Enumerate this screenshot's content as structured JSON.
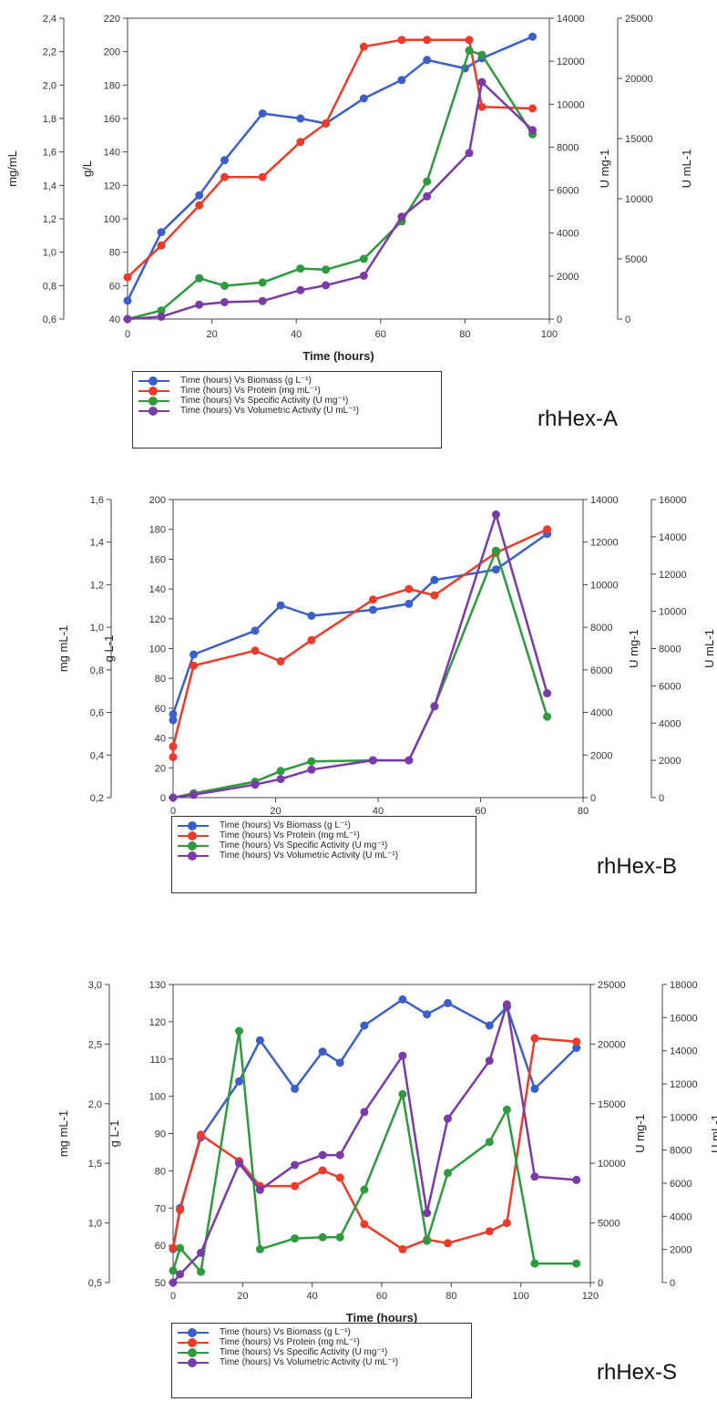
{
  "colors": {
    "biomass": "#3a5fc8",
    "protein": "#ee3a2a",
    "specific": "#2e9a3e",
    "volumetric": "#7a3aa8"
  },
  "chart_data": [
    {
      "type": "line",
      "name": "rhHex-A",
      "xlabel": "Time (hours)",
      "xlim": [
        0,
        100
      ],
      "xticks": [
        0,
        20,
        40,
        60,
        80,
        100
      ],
      "axes": [
        {
          "id": "mg",
          "label": "mg/mL",
          "min": 0.6,
          "max": 2.4,
          "ticks": [
            "0,6",
            "0,8",
            "1,0",
            "1,2",
            "1,4",
            "1,6",
            "1,8",
            "2,0",
            "2,2",
            "2,4"
          ]
        },
        {
          "id": "gl",
          "label": "g/L",
          "min": 40,
          "max": 220,
          "ticks": [
            "40",
            "60",
            "80",
            "100",
            "120",
            "140",
            "160",
            "180",
            "200",
            "220"
          ]
        },
        {
          "id": "umg",
          "label": "U mg-1",
          "min": 0,
          "max": 14000,
          "ticks": [
            "0",
            "2000",
            "4000",
            "6000",
            "8000",
            "10000",
            "12000",
            "14000"
          ]
        },
        {
          "id": "uml",
          "label": "U mL-1",
          "min": 0,
          "max": 25000,
          "ticks": [
            "0",
            "5000",
            "10000",
            "15000",
            "20000",
            "25000"
          ]
        }
      ],
      "series": [
        {
          "name": "Time (hours) Vs Biomass (g L⁻¹)",
          "axis": "gl",
          "color": "biomass",
          "x": [
            0,
            8,
            17,
            23,
            32,
            41,
            47,
            56,
            65,
            71,
            80,
            84,
            96
          ],
          "y": [
            51,
            92,
            114,
            135,
            163,
            160,
            157,
            172,
            183,
            195,
            190,
            196,
            209
          ]
        },
        {
          "name": "Time (hours) Vs Protein (mg mL⁻¹)",
          "axis": "mg",
          "color": "protein",
          "x": [
            0,
            8,
            17,
            23,
            32,
            41,
            47,
            56,
            65,
            71,
            81,
            84,
            96
          ],
          "y": [
            0.85,
            1.04,
            1.28,
            1.45,
            1.45,
            1.66,
            1.77,
            2.23,
            2.27,
            2.27,
            2.27,
            1.87,
            1.86
          ]
        },
        {
          "name": "Time (hours) Vs Specific Activity (U mg⁻¹)",
          "axis": "umg",
          "color": "specific",
          "x": [
            0,
            8,
            17,
            23,
            32,
            41,
            47,
            56,
            65,
            71,
            81,
            84,
            96
          ],
          "y": [
            0,
            400,
            1900,
            1550,
            1700,
            2350,
            2300,
            2800,
            4550,
            6400,
            12500,
            12300,
            8600
          ]
        },
        {
          "name": "Time (hours) Vs Volumetric Activity  (U mL⁻¹)",
          "axis": "uml",
          "color": "volumetric",
          "x": [
            0,
            8,
            17,
            23,
            32,
            41,
            47,
            56,
            65,
            71,
            81,
            84,
            96
          ],
          "y": [
            0,
            200,
            1200,
            1400,
            1500,
            2400,
            2800,
            3600,
            8500,
            10200,
            13800,
            19700,
            15700
          ]
        }
      ]
    },
    {
      "type": "line",
      "name": "rhHex-B",
      "xlabel": "Time (hours)",
      "xlim": [
        0,
        80
      ],
      "xticks": [
        0,
        20,
        40,
        60,
        80
      ],
      "axes": [
        {
          "id": "mg",
          "label": "mg mL-1",
          "min": 0.2,
          "max": 1.6,
          "ticks": [
            "0,2",
            "0,4",
            "0,6",
            "0,8",
            "1,0",
            "1,2",
            "1,4",
            "1,6"
          ]
        },
        {
          "id": "gl",
          "label": "g L-1",
          "min": 0,
          "max": 200,
          "ticks": [
            "0",
            "20",
            "40",
            "60",
            "80",
            "100",
            "120",
            "140",
            "160",
            "180",
            "200"
          ]
        },
        {
          "id": "umg",
          "label": "U mg-1",
          "min": 0,
          "max": 14000,
          "ticks": [
            "0",
            "2000",
            "4000",
            "6000",
            "8000",
            "10000",
            "12000",
            "14000"
          ]
        },
        {
          "id": "uml",
          "label": "U mL-1",
          "min": 0,
          "max": 16000,
          "ticks": [
            "0",
            "2000",
            "4000",
            "6000",
            "8000",
            "10000",
            "12000",
            "14000",
            "16000"
          ]
        }
      ],
      "series": [
        {
          "name": "Time (hours) Vs Biomass (g L⁻¹)",
          "axis": "gl",
          "color": "biomass",
          "x": [
            0,
            0,
            4,
            16,
            21,
            27,
            39,
            46,
            51,
            63,
            73
          ],
          "y": [
            52,
            56,
            96,
            112,
            129,
            122,
            126,
            130,
            146,
            153,
            177
          ]
        },
        {
          "name": "Time (hours) Vs Protein (mg mL⁻¹)",
          "axis": "mg",
          "color": "protein",
          "x": [
            0,
            0,
            4,
            16,
            21,
            27,
            39,
            46,
            51,
            63,
            73
          ],
          "y": [
            0.39,
            0.44,
            0.82,
            0.89,
            0.84,
            0.94,
            1.13,
            1.18,
            1.15,
            1.35,
            1.46
          ]
        },
        {
          "name": "Time (hours) Vs Specific Activity (U mg⁻¹)",
          "axis": "umg",
          "color": "specific",
          "x": [
            0,
            4,
            16,
            21,
            27,
            39,
            46,
            51,
            63,
            73
          ],
          "y": [
            0,
            200,
            750,
            1250,
            1700,
            1750,
            1750,
            4300,
            11600,
            3800
          ]
        },
        {
          "name": "Time (hours) Vs Volumetric Activity  (U mL⁻¹)",
          "axis": "uml",
          "color": "volumetric",
          "x": [
            0,
            4,
            16,
            21,
            27,
            39,
            46,
            51,
            63,
            73
          ],
          "y": [
            0,
            150,
            700,
            1000,
            1500,
            2000,
            2000,
            4900,
            15200,
            5600
          ]
        }
      ]
    },
    {
      "type": "line",
      "name": "rhHex-S",
      "xlabel": "Time (hours)",
      "xlim": [
        0,
        120
      ],
      "xticks": [
        0,
        20,
        40,
        60,
        80,
        100,
        120
      ],
      "axes": [
        {
          "id": "mg",
          "label": "mg mL-1",
          "min": 0.5,
          "max": 3.0,
          "ticks": [
            "0,5",
            "1,0",
            "1,5",
            "2,0",
            "2,5",
            "3,0"
          ]
        },
        {
          "id": "gl",
          "label": "g L-1",
          "min": 50,
          "max": 130,
          "ticks": [
            "50",
            "60",
            "70",
            "80",
            "90",
            "100",
            "110",
            "120",
            "130"
          ]
        },
        {
          "id": "umg",
          "label": "U mg-1",
          "min": 0,
          "max": 25000,
          "ticks": [
            "0",
            "5000",
            "10000",
            "15000",
            "20000",
            "25000"
          ]
        },
        {
          "id": "uml",
          "label": "U mL-1",
          "min": 0,
          "max": 18000,
          "ticks": [
            "0",
            "2000",
            "4000",
            "6000",
            "8000",
            "10000",
            "12000",
            "14000",
            "16000",
            "18000"
          ]
        }
      ],
      "series": [
        {
          "name": "Time (hours) Vs Biomass (g L⁻¹)",
          "axis": "gl",
          "color": "biomass",
          "x": [
            0,
            2,
            8,
            19,
            25,
            35,
            43,
            48,
            55,
            66,
            73,
            79,
            91,
            96,
            104,
            116
          ],
          "y": [
            59,
            70,
            89,
            104,
            115,
            102,
            112,
            109,
            119,
            126,
            122,
            125,
            119,
            124,
            102,
            113
          ]
        },
        {
          "name": "Time (hours) Vs Protein (mg mL⁻¹)",
          "axis": "mg",
          "color": "protein",
          "x": [
            0,
            2,
            8,
            19,
            25,
            35,
            43,
            48,
            55,
            66,
            73,
            79,
            91,
            96,
            104,
            116
          ],
          "y": [
            0.79,
            1.11,
            1.74,
            1.52,
            1.31,
            1.31,
            1.44,
            1.38,
            0.99,
            0.78,
            0.86,
            0.83,
            0.93,
            1.0,
            2.55,
            2.52
          ]
        },
        {
          "name": "Time (hours) Vs Specific Activity (U mg⁻¹)",
          "axis": "umg",
          "color": "specific",
          "x": [
            0,
            2,
            8,
            19,
            25,
            35,
            43,
            48,
            55,
            66,
            73,
            79,
            91,
            96,
            104,
            116
          ],
          "y": [
            1000,
            2900,
            900,
            21100,
            2800,
            3700,
            3800,
            3800,
            7800,
            15800,
            3500,
            9200,
            11800,
            14500,
            1600,
            1600
          ]
        },
        {
          "name": "Time (hours) Vs Volumetric Activity  (U mL⁻¹)",
          "axis": "uml",
          "color": "volumetric",
          "x": [
            0,
            2,
            8,
            19,
            25,
            35,
            43,
            48,
            55,
            66,
            73,
            79,
            91,
            96,
            104,
            116
          ],
          "y": [
            0,
            500,
            1800,
            7200,
            5600,
            7100,
            7700,
            7700,
            10300,
            13700,
            4200,
            9900,
            13400,
            16800,
            6400,
            6200
          ]
        }
      ]
    }
  ]
}
